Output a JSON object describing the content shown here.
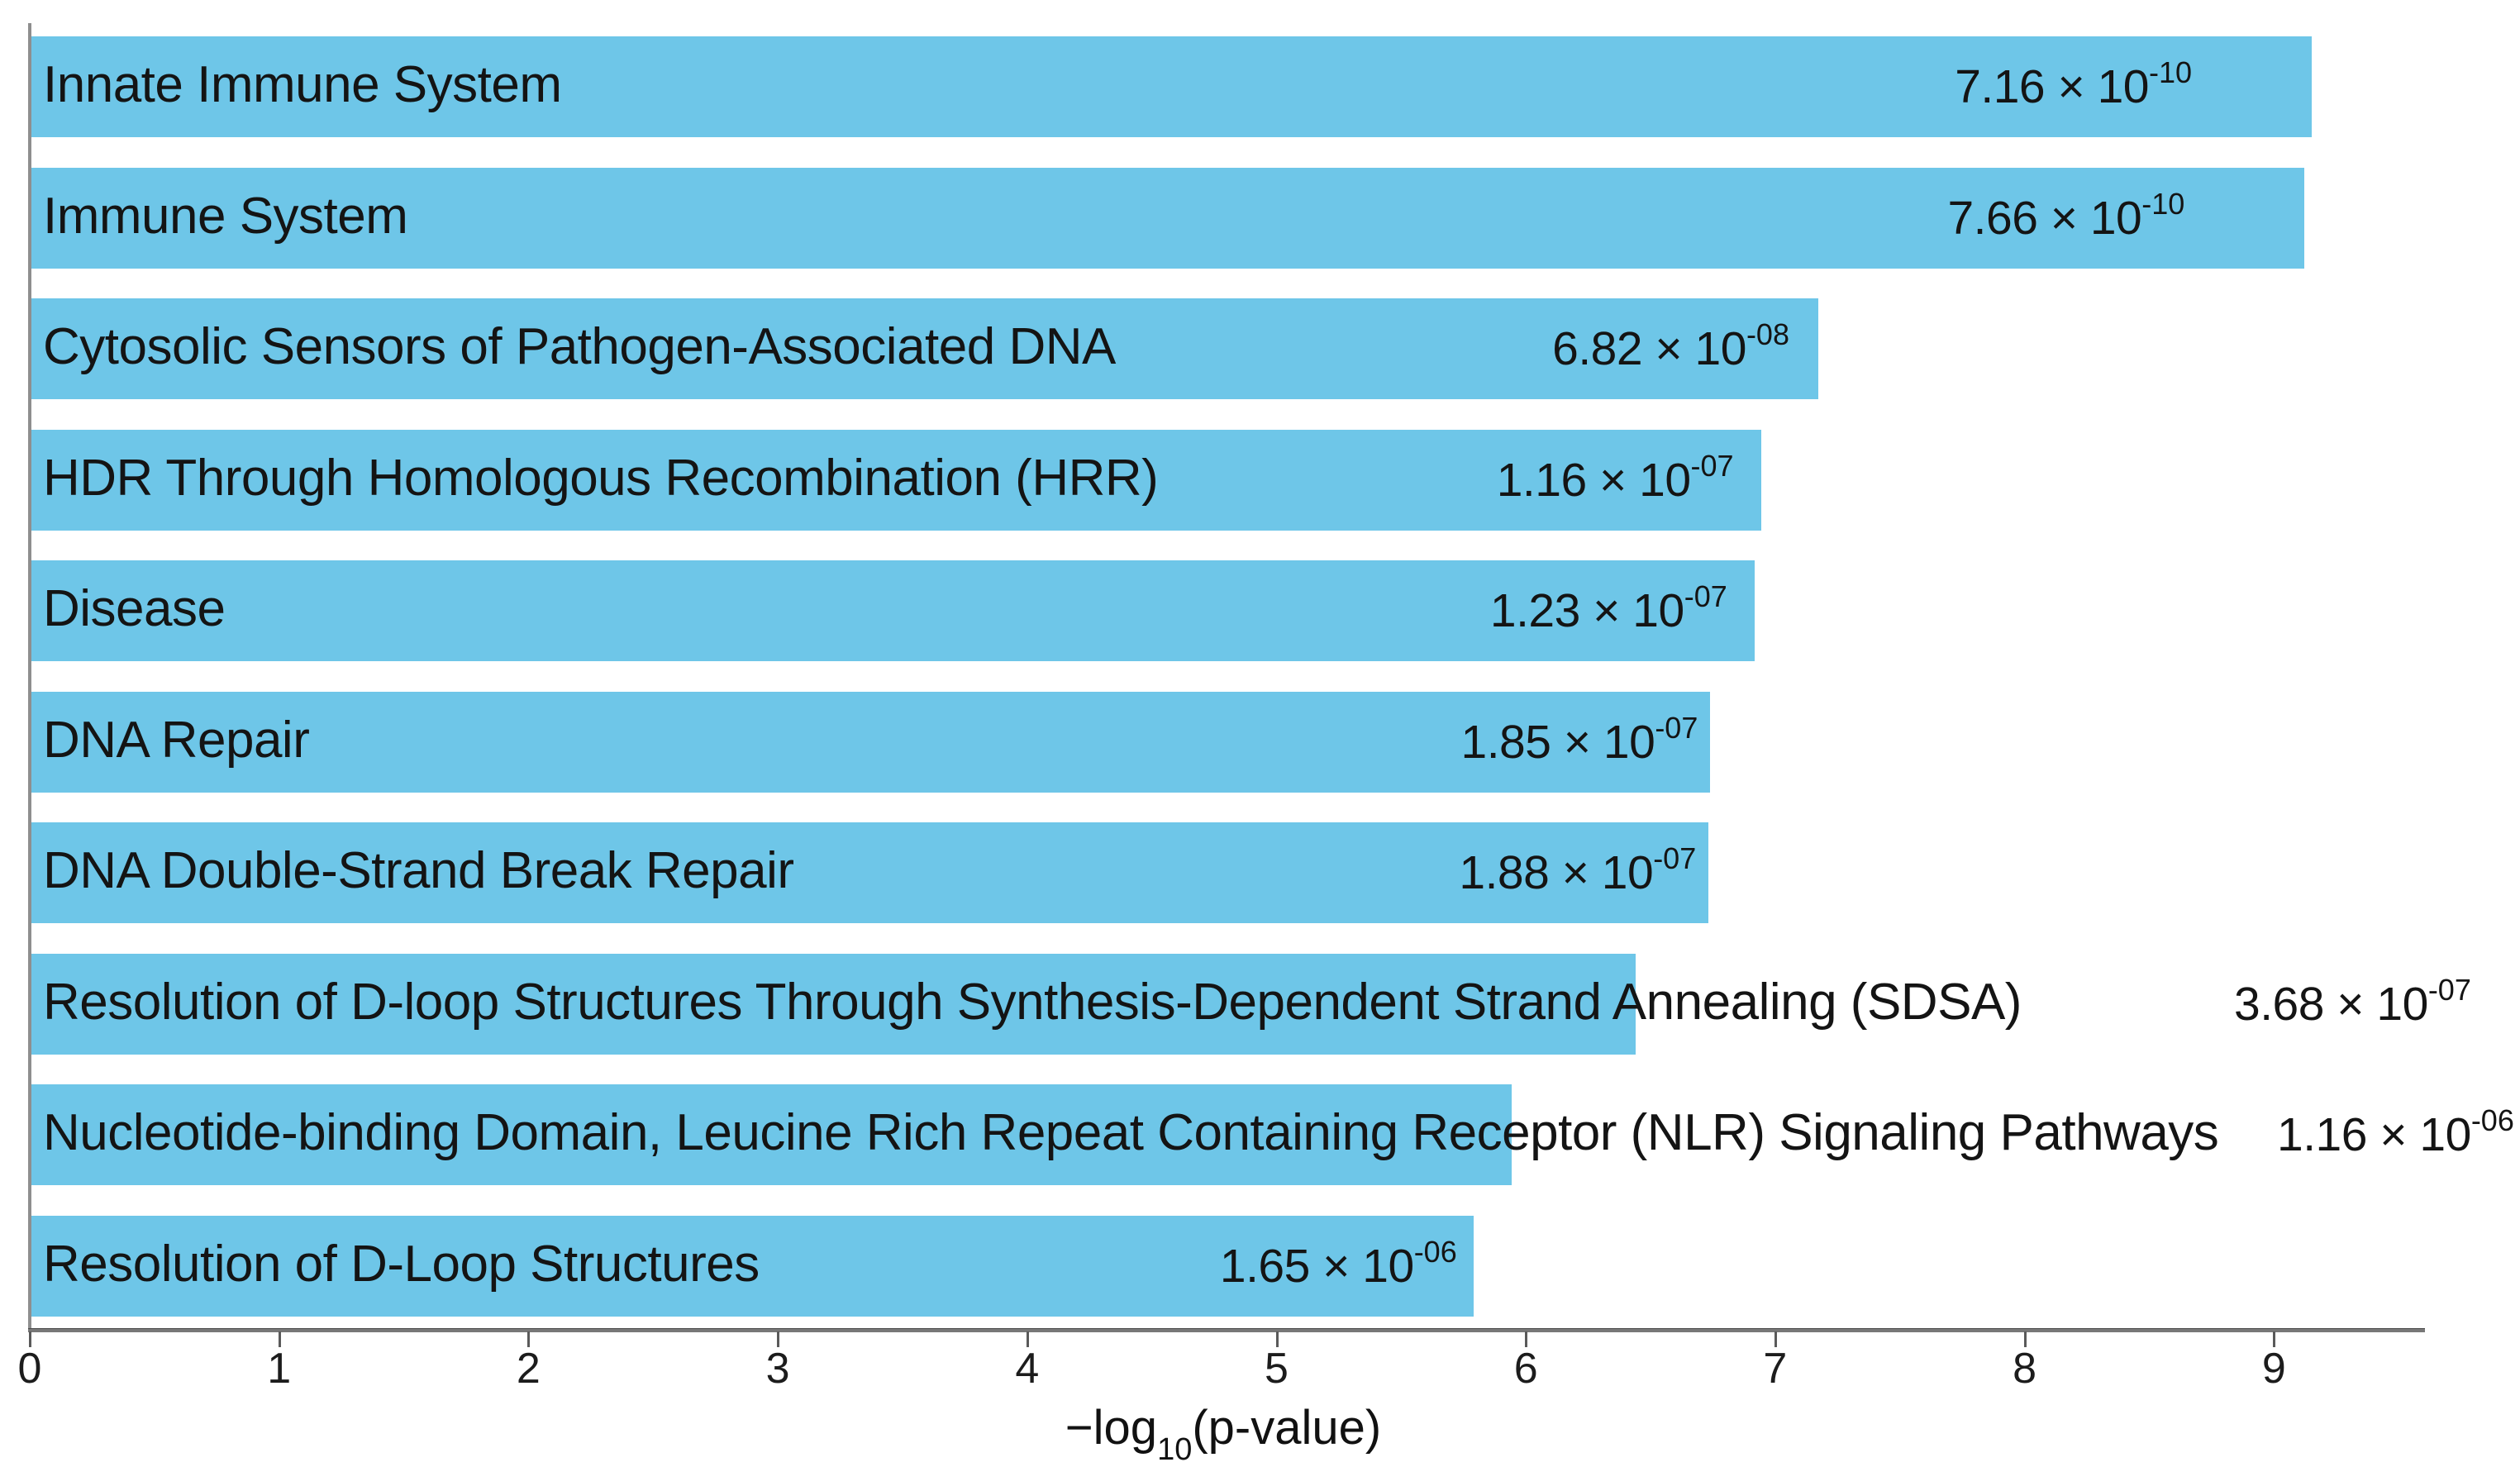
{
  "chart_data": {
    "type": "bar",
    "orientation": "horizontal",
    "title": "",
    "xlabel": "−log10(p-value)",
    "ylabel": "",
    "xlim": [
      0,
      9.6
    ],
    "x_ticks": [
      0,
      1,
      2,
      3,
      4,
      5,
      6,
      7,
      8,
      9
    ],
    "grid": false,
    "legend": "none",
    "bar_color": "#6ec6e8",
    "categories": [
      "Innate Immune System",
      "Immune System",
      "Cytosolic Sensors of Pathogen-Associated DNA",
      "HDR Through Homologous Recombination (HRR)",
      "Disease",
      "DNA Repair",
      "DNA Double-Strand Break Repair",
      "Resolution of D-loop Structures Through Synthesis-Dependent Strand Annealing (SDSA)",
      "Nucleotide-binding Domain, Leucine Rich Repeat Containing Receptor (NLR) Signaling Pathways",
      "Resolution of D-Loop Structures"
    ],
    "values": [
      9.145,
      9.116,
      7.166,
      6.936,
      6.91,
      6.733,
      6.726,
      6.434,
      5.936,
      5.783
    ],
    "p_value_labels": [
      "7.16 × 10-10",
      "7.66 × 10-10",
      "6.82 × 10-08",
      "1.16 × 10-07",
      "1.23 × 10-07",
      "1.85 × 10-07",
      "1.88 × 10-07",
      "3.68 × 10-07",
      "1.16 × 10-06",
      "1.65 × 10-06"
    ]
  },
  "rows": [
    {
      "label": "Innate Immune System",
      "mantissa": "7.16 × 10",
      "exponent": "-10",
      "value": 9.145,
      "value_placement": "inside",
      "value_inset": 145
    },
    {
      "label": "Immune System",
      "mantissa": "7.66 × 10",
      "exponent": "-10",
      "value": 9.116,
      "value_placement": "inside",
      "value_inset": 145
    },
    {
      "label": "Cytosolic Sensors of Pathogen-Associated DNA",
      "mantissa": "6.82 × 10",
      "exponent": "-08",
      "value": 7.166,
      "value_placement": "inside",
      "value_inset": 35
    },
    {
      "label": "HDR Through Homologous Recombination (HRR)",
      "mantissa": "1.16 × 10",
      "exponent": "-07",
      "value": 6.936,
      "value_placement": "inside",
      "value_inset": 33
    },
    {
      "label": "Disease",
      "mantissa": "1.23 × 10",
      "exponent": "-07",
      "value": 6.91,
      "value_placement": "inside",
      "value_inset": 33
    },
    {
      "label": "DNA Repair",
      "mantissa": "1.85 × 10",
      "exponent": "-07",
      "value": 6.733,
      "value_placement": "inside",
      "value_inset": 15
    },
    {
      "label": "DNA Double-Strand Break Repair",
      "mantissa": "1.88 × 10",
      "exponent": "-07",
      "value": 6.726,
      "value_placement": "inside",
      "value_inset": 15
    },
    {
      "label": "Resolution of D-loop Structures Through Synthesis-Dependent Strand Annealing (SDSA)",
      "mantissa": "3.68 × 10",
      "exponent": "-07",
      "value": 6.434,
      "value_placement": "outside",
      "value_x": 2703
    },
    {
      "label": "Nucleotide-binding Domain, Leucine Rich Repeat Containing Receptor (NLR) Signaling Pathways",
      "mantissa": "1.16 × 10",
      "exponent": "-06",
      "value": 5.936,
      "value_placement": "outside",
      "value_x": 2755
    },
    {
      "label": "Resolution of D-Loop Structures",
      "mantissa": "1.65 × 10",
      "exponent": "-06",
      "value": 5.783,
      "value_placement": "inside",
      "value_inset": 20
    }
  ],
  "axis": {
    "tick_labels": [
      "0",
      "1",
      "2",
      "3",
      "4",
      "5",
      "6",
      "7",
      "8",
      "9"
    ],
    "title_pre": "−log",
    "title_sub": "10",
    "title_post": "(p-value)"
  },
  "colors": {
    "bar": "#6ec6e8",
    "text": "#141414",
    "axis_line": "#787878",
    "spine": "#8e8e8e"
  }
}
